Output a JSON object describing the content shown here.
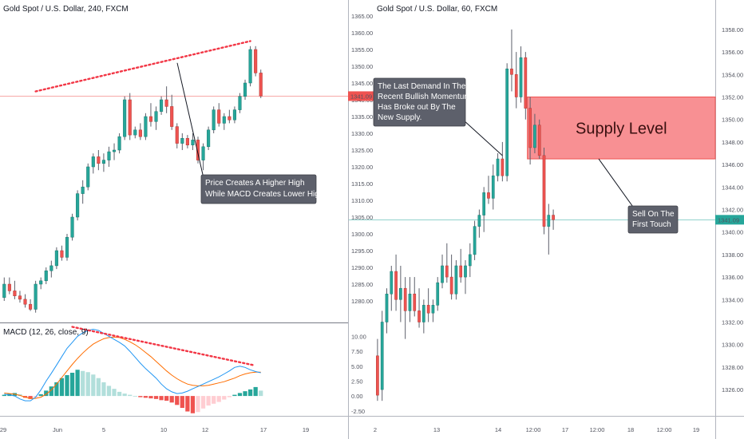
{
  "colors": {
    "bull": "#26a69a",
    "bear": "#ef5350",
    "wick": "#5d606b",
    "macd_line": "#2196f3",
    "signal_line": "#ff6d00",
    "hist_bull_strong": "#26a69a",
    "hist_bull_weak": "#b2dfdb",
    "hist_bear_strong": "#ef5350",
    "hist_bear_weak": "#ffcdd2",
    "dotted": "#f23645",
    "annotation_bg": "#5d606b",
    "supply_fill": "#f77c80",
    "price_line": "#ef5350",
    "price_line2": "#26a69a"
  },
  "chart_data": [
    {
      "type": "candlestick",
      "title": "Gold Spot / U.S. Dollar, 240, FXCM",
      "ylim": [
        1275,
        1365
      ],
      "y_ticks": [
        "1365.00",
        "1360.00",
        "1355.00",
        "1350.00",
        "1345.00",
        "1340.00",
        "1335.00",
        "1330.00",
        "1325.00",
        "1320.00",
        "1315.00",
        "1310.00",
        "1305.00",
        "1300.00",
        "1295.00",
        "1290.00",
        "1285.00",
        "1280.00"
      ],
      "x_ticks": [
        "29",
        "Jun",
        "5",
        "10",
        "12",
        "17",
        "19"
      ],
      "last_price": "1341.09",
      "candles": [
        [
          1281.0,
          1287.0,
          1280.0,
          1285.0
        ],
        [
          1285.0,
          1287.0,
          1282.0,
          1283.0
        ],
        [
          1283.0,
          1286.0,
          1280.5,
          1281.5
        ],
        [
          1281.5,
          1283.0,
          1279.5,
          1280.5
        ],
        [
          1280.5,
          1282.0,
          1278.0,
          1279.0
        ],
        [
          1279.0,
          1280.5,
          1277.0,
          1277.5
        ],
        [
          1277.5,
          1286.0,
          1276.5,
          1285.0
        ],
        [
          1285.0,
          1287.0,
          1283.5,
          1286.0
        ],
        [
          1286.0,
          1290.0,
          1285.0,
          1289.0
        ],
        [
          1289.0,
          1292.0,
          1287.0,
          1290.5
        ],
        [
          1290.5,
          1296.0,
          1289.5,
          1295.0
        ],
        [
          1295.0,
          1296.5,
          1292.0,
          1293.0
        ],
        [
          1293.0,
          1300.0,
          1292.0,
          1299.0
        ],
        [
          1299.0,
          1306.0,
          1298.0,
          1305.0
        ],
        [
          1305.0,
          1313.0,
          1304.0,
          1312.0
        ],
        [
          1312.0,
          1316.0,
          1309.0,
          1314.0
        ],
        [
          1314.0,
          1321.0,
          1313.0,
          1320.0
        ],
        [
          1320.0,
          1324.0,
          1318.0,
          1323.0
        ],
        [
          1323.0,
          1325.0,
          1319.0,
          1321.0
        ],
        [
          1321.0,
          1324.0,
          1318.5,
          1322.0
        ],
        [
          1322.0,
          1326.0,
          1320.0,
          1324.5
        ],
        [
          1324.5,
          1327.0,
          1322.0,
          1325.0
        ],
        [
          1325.0,
          1330.0,
          1324.0,
          1329.0
        ],
        [
          1329.0,
          1341.0,
          1328.0,
          1340.0
        ],
        [
          1340.0,
          1342.0,
          1328.0,
          1329.5
        ],
        [
          1329.5,
          1332.0,
          1328.5,
          1331.0
        ],
        [
          1331.0,
          1333.0,
          1328.0,
          1329.0
        ],
        [
          1329.0,
          1336.0,
          1328.0,
          1335.0
        ],
        [
          1335.0,
          1339.0,
          1332.0,
          1333.5
        ],
        [
          1333.5,
          1338.0,
          1331.0,
          1336.5
        ],
        [
          1336.5,
          1341.0,
          1335.5,
          1340.0
        ],
        [
          1340.0,
          1344.0,
          1336.0,
          1338.0
        ],
        [
          1338.0,
          1341.5,
          1331.0,
          1332.0
        ],
        [
          1332.0,
          1333.0,
          1325.5,
          1327.0
        ],
        [
          1327.0,
          1330.0,
          1325.0,
          1328.5
        ],
        [
          1328.5,
          1329.5,
          1325.5,
          1326.5
        ],
        [
          1326.5,
          1330.0,
          1325.0,
          1328.0
        ],
        [
          1328.0,
          1329.0,
          1321.0,
          1322.0
        ],
        [
          1322.0,
          1327.0,
          1319.0,
          1326.0
        ],
        [
          1326.0,
          1332.0,
          1325.0,
          1331.0
        ],
        [
          1331.0,
          1338.0,
          1330.0,
          1337.0
        ],
        [
          1337.0,
          1339.0,
          1332.0,
          1333.0
        ],
        [
          1333.0,
          1336.0,
          1331.0,
          1335.0
        ],
        [
          1335.0,
          1337.0,
          1333.0,
          1334.0
        ],
        [
          1334.0,
          1338.0,
          1333.0,
          1337.0
        ],
        [
          1337.0,
          1342.0,
          1336.0,
          1341.0
        ],
        [
          1341.0,
          1346.0,
          1340.0,
          1345.0
        ],
        [
          1345.0,
          1356.0,
          1344.0,
          1355.0
        ],
        [
          1355.0,
          1356.0,
          1347.0,
          1348.0
        ],
        [
          1348.0,
          1349.0,
          1340.5,
          1341.09
        ]
      ],
      "price_dots": [
        [
          6,
          1342.5
        ],
        [
          47,
          1357.5
        ]
      ],
      "annotation": {
        "lines": [
          "Price Creates A Higher High",
          "While MACD Creates Lower High"
        ],
        "anchor_price": 1351.0
      },
      "macd": {
        "title": "MACD (12, 26, close, 9)",
        "ylim": [
          -3.2,
          11.8
        ],
        "y_ticks": [
          "10.00",
          "7.50",
          "5.00",
          "2.50",
          "0.00",
          "-2.50"
        ],
        "histogram": [
          0.2,
          0.4,
          0.5,
          0.3,
          -0.3,
          -0.5,
          -0.2,
          0.3,
          0.9,
          1.6,
          2.3,
          3.0,
          3.5,
          3.9,
          4.4,
          4.2,
          4.0,
          3.6,
          3.0,
          2.3,
          1.7,
          1.2,
          0.7,
          0.4,
          0.2,
          0.0,
          -0.2,
          -0.3,
          -0.4,
          -0.5,
          -0.7,
          -0.8,
          -1.1,
          -1.5,
          -2.0,
          -2.6,
          -2.9,
          -2.7,
          -2.1,
          -1.6,
          -1.3,
          -1.0,
          -0.6,
          -0.2,
          0.2,
          0.5,
          0.8,
          1.1,
          1.5,
          0.9
        ],
        "macd_line": [
          0.3,
          0.2,
          0.0,
          -0.5,
          -0.8,
          -0.8,
          -0.2,
          1.0,
          2.5,
          3.8,
          5.2,
          6.6,
          8.0,
          9.0,
          10.0,
          10.6,
          11.0,
          11.2,
          11.0,
          10.5,
          10.0,
          9.5,
          9.0,
          8.4,
          7.5,
          6.5,
          5.5,
          4.6,
          3.8,
          3.0,
          2.0,
          1.2,
          0.7,
          0.4,
          0.5,
          0.8,
          1.2,
          1.6,
          2.0,
          2.4,
          2.8,
          3.2,
          3.7,
          4.2,
          4.8,
          5.0,
          4.8,
          4.4,
          4.1,
          3.9
        ],
        "signal_line": [
          0.5,
          0.4,
          0.3,
          0.1,
          -0.2,
          -0.4,
          -0.4,
          -0.2,
          0.3,
          1.0,
          2.0,
          3.1,
          4.2,
          5.3,
          6.3,
          7.2,
          8.0,
          8.7,
          9.2,
          9.6,
          9.8,
          9.9,
          9.8,
          9.5,
          9.1,
          8.6,
          8.0,
          7.3,
          6.6,
          5.8,
          5.0,
          4.2,
          3.5,
          2.9,
          2.4,
          2.0,
          1.8,
          1.7,
          1.7,
          1.8,
          2.0,
          2.2,
          2.4,
          2.7,
          3.0,
          3.4,
          3.7,
          3.9,
          4.0,
          4.0
        ],
        "dots": [
          [
            13,
            11.6
          ],
          [
            47,
            5.2
          ]
        ]
      }
    },
    {
      "type": "candlestick",
      "title": "Gold Spot / U.S. Dollar, 60, FXCM",
      "ylim": [
        1324.8,
        1359.2
      ],
      "y_ticks": [
        "1358.00",
        "1356.00",
        "1354.00",
        "1352.00",
        "1350.00",
        "1348.00",
        "1346.00",
        "1344.00",
        "1342.00",
        "1340.00",
        "1338.00",
        "1336.00",
        "1334.00",
        "1332.00",
        "1330.00",
        "1328.00",
        "1326.00"
      ],
      "x_ticks": [
        "2",
        "13",
        "14",
        "12:00",
        "17",
        "12:00",
        "18",
        "12:00",
        "19"
      ],
      "last_price": "1341.09",
      "candles": [
        [
          1329.0,
          1330.5,
          1325.0,
          1325.5
        ],
        [
          1326.0,
          1333.0,
          1325.0,
          1332.0
        ],
        [
          1332.0,
          1335.0,
          1331.0,
          1334.5
        ],
        [
          1334.5,
          1337.0,
          1333.0,
          1336.5
        ],
        [
          1336.5,
          1338.0,
          1333.0,
          1334.0
        ],
        [
          1334.0,
          1337.0,
          1332.0,
          1335.0
        ],
        [
          1335.0,
          1336.0,
          1330.5,
          1333.0
        ],
        [
          1333.0,
          1336.0,
          1332.0,
          1334.5
        ],
        [
          1334.5,
          1336.0,
          1332.5,
          1333.0
        ],
        [
          1333.0,
          1335.0,
          1331.5,
          1332.0
        ],
        [
          1332.0,
          1334.0,
          1331.0,
          1333.5
        ],
        [
          1333.5,
          1335.0,
          1332.0,
          1332.8
        ],
        [
          1332.8,
          1334.0,
          1332.0,
          1333.5
        ],
        [
          1333.5,
          1336.0,
          1333.0,
          1335.5
        ],
        [
          1335.5,
          1338.0,
          1335.0,
          1337.0
        ],
        [
          1337.0,
          1339.0,
          1335.5,
          1336.0
        ],
        [
          1336.0,
          1338.0,
          1334.0,
          1334.5
        ],
        [
          1334.5,
          1337.5,
          1334.0,
          1337.0
        ],
        [
          1337.0,
          1338.5,
          1335.5,
          1336.0
        ],
        [
          1336.0,
          1337.5,
          1334.5,
          1337.0
        ],
        [
          1337.0,
          1339.0,
          1336.0,
          1338.0
        ],
        [
          1338.0,
          1341.0,
          1337.5,
          1340.5
        ],
        [
          1340.5,
          1342.0,
          1339.5,
          1341.5
        ],
        [
          1341.5,
          1344.0,
          1340.0,
          1343.5
        ],
        [
          1343.5,
          1345.0,
          1342.5,
          1343.0
        ],
        [
          1343.0,
          1346.0,
          1342.0,
          1345.0
        ],
        [
          1345.0,
          1347.0,
          1344.5,
          1346.5
        ],
        [
          1346.5,
          1348.0,
          1344.5,
          1345.0
        ],
        [
          1345.0,
          1355.0,
          1344.5,
          1354.5
        ],
        [
          1354.5,
          1358.0,
          1352.5,
          1354.0
        ],
        [
          1354.0,
          1356.0,
          1351.0,
          1352.0
        ],
        [
          1352.0,
          1356.5,
          1351.5,
          1355.5
        ],
        [
          1355.5,
          1356.0,
          1350.0,
          1351.0
        ],
        [
          1351.0,
          1352.0,
          1346.0,
          1347.5
        ],
        [
          1347.5,
          1350.5,
          1347.0,
          1349.5
        ],
        [
          1349.5,
          1350.0,
          1346.5,
          1346.8
        ],
        [
          1346.8,
          1347.5,
          1339.8,
          1340.5
        ],
        [
          1340.5,
          1342.5,
          1338.0,
          1341.5
        ],
        [
          1341.5,
          1342.0,
          1340.2,
          1341.09
        ]
      ],
      "supply_zone": {
        "label": "Supply Level",
        "top": 1352.0,
        "bottom": 1346.5,
        "from_index": 33
      },
      "annotation_left": {
        "lines": [
          "The Last Demand In The",
          "Recent Bullish Momentum",
          "Has Broke out By The",
          "New Supply."
        ],
        "anchor_price": 1346.8
      },
      "annotation_right": {
        "lines": [
          "Sell On The",
          "First Touch"
        ],
        "anchor_price": 1346.5
      }
    }
  ]
}
